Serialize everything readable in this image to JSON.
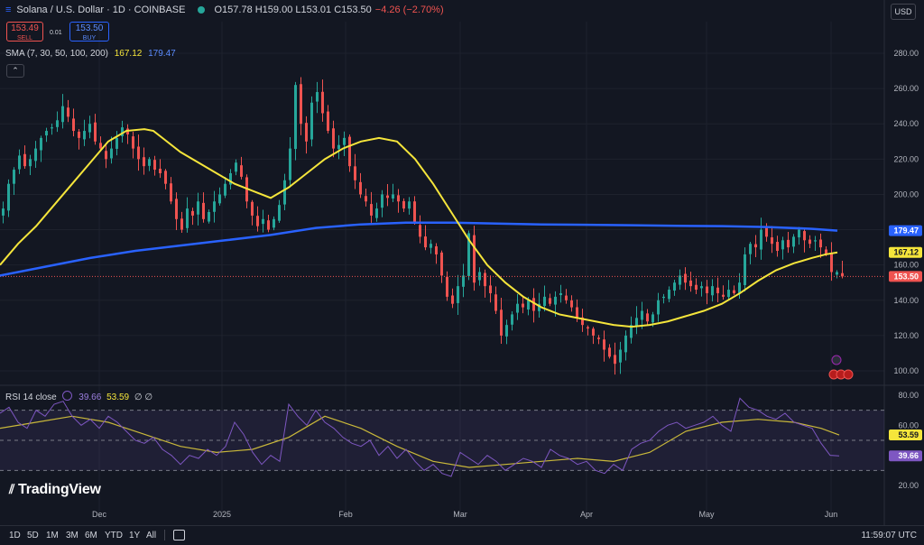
{
  "header": {
    "title": "Solana / U.S. Dollar · 1D · COINBASE",
    "ohlc": "O157.78 H159.00 L153.01 C153.50",
    "change": "−4.26 (−2.70%)"
  },
  "trade": {
    "sell_price": "153.49",
    "sell_label": "SELL",
    "spread": "0.01",
    "buy_price": "153.50",
    "buy_label": "BUY"
  },
  "indicator": {
    "label": "SMA (7, 30, 50, 100, 200)",
    "v1": "167.12",
    "v2": "179.47"
  },
  "currency": "USD",
  "rsi": {
    "label": "RSI 14 close",
    "v1": "39.66",
    "v2": "53.59",
    "extra": "∅ ∅"
  },
  "logo": "TradingView",
  "bottom": {
    "timeframes": [
      "1D",
      "5D",
      "1M",
      "3M",
      "6M",
      "YTD",
      "1Y",
      "All"
    ],
    "clock": "11:59:07 UTC"
  },
  "colors": {
    "up": "#26a69a",
    "down": "#ef5350",
    "sma_yellow": "#f5e53b",
    "sma_blue": "#2962ff",
    "rsi": "#7e57c2",
    "rsi_ma": "#c9b83a",
    "bg": "#131722"
  },
  "chart_data": {
    "type": "candlestick",
    "interval": "1D",
    "x_ticks": [
      "Dec",
      "2025",
      "Feb",
      "Mar",
      "Apr",
      "May",
      "Jun"
    ],
    "y_ticks": [
      100,
      120,
      140,
      160,
      180,
      200,
      220,
      240,
      260,
      280
    ],
    "ylim": [
      95,
      290
    ],
    "price_labels": {
      "sma_blue": "179.47",
      "sma_yellow": "167.12",
      "last": "153.50"
    },
    "close_series": [
      [
        0,
        192
      ],
      [
        6,
        206
      ],
      [
        12,
        214
      ],
      [
        18,
        222
      ],
      [
        24,
        216
      ],
      [
        30,
        220
      ],
      [
        36,
        226
      ],
      [
        42,
        232
      ],
      [
        48,
        236
      ],
      [
        54,
        238
      ],
      [
        60,
        242
      ],
      [
        66,
        250
      ],
      [
        72,
        244
      ],
      [
        78,
        236
      ],
      [
        84,
        232
      ],
      [
        90,
        236
      ],
      [
        96,
        240
      ],
      [
        102,
        230
      ],
      [
        108,
        226
      ],
      [
        114,
        220
      ],
      [
        120,
        226
      ],
      [
        126,
        232
      ],
      [
        132,
        238
      ],
      [
        138,
        234
      ],
      [
        144,
        226
      ],
      [
        150,
        220
      ],
      [
        156,
        216
      ],
      [
        162,
        220
      ],
      [
        168,
        214
      ],
      [
        174,
        212
      ],
      [
        180,
        206
      ],
      [
        186,
        196
      ],
      [
        192,
        186
      ],
      [
        198,
        180
      ],
      [
        204,
        192
      ],
      [
        210,
        188
      ],
      [
        216,
        196
      ],
      [
        222,
        186
      ],
      [
        228,
        190
      ],
      [
        234,
        196
      ],
      [
        240,
        200
      ],
      [
        246,
        206
      ],
      [
        252,
        212
      ],
      [
        258,
        218
      ],
      [
        264,
        210
      ],
      [
        270,
        196
      ],
      [
        276,
        188
      ],
      [
        282,
        182
      ],
      [
        288,
        186
      ],
      [
        294,
        180
      ],
      [
        300,
        186
      ],
      [
        306,
        194
      ],
      [
        312,
        208
      ],
      [
        318,
        226
      ],
      [
        324,
        262
      ],
      [
        330,
        240
      ],
      [
        336,
        230
      ],
      [
        342,
        252
      ],
      [
        348,
        258
      ],
      [
        354,
        246
      ],
      [
        360,
        236
      ],
      [
        366,
        226
      ],
      [
        372,
        228
      ],
      [
        378,
        232
      ],
      [
        384,
        216
      ],
      [
        390,
        208
      ],
      [
        396,
        200
      ],
      [
        402,
        196
      ],
      [
        408,
        188
      ],
      [
        414,
        192
      ],
      [
        420,
        200
      ],
      [
        426,
        198
      ],
      [
        432,
        200
      ],
      [
        438,
        196
      ],
      [
        444,
        192
      ],
      [
        450,
        196
      ],
      [
        456,
        184
      ],
      [
        462,
        176
      ],
      [
        468,
        170
      ],
      [
        474,
        172
      ],
      [
        480,
        166
      ],
      [
        486,
        154
      ],
      [
        492,
        142
      ],
      [
        498,
        138
      ],
      [
        504,
        148
      ],
      [
        510,
        154
      ],
      [
        516,
        178
      ],
      [
        522,
        150
      ],
      [
        528,
        156
      ],
      [
        534,
        148
      ],
      [
        540,
        144
      ],
      [
        546,
        134
      ],
      [
        552,
        120
      ],
      [
        558,
        126
      ],
      [
        564,
        132
      ],
      [
        570,
        138
      ],
      [
        576,
        136
      ],
      [
        582,
        140
      ],
      [
        588,
        134
      ],
      [
        594,
        138
      ],
      [
        600,
        142
      ],
      [
        606,
        138
      ],
      [
        612,
        142
      ],
      [
        618,
        144
      ],
      [
        624,
        140
      ],
      [
        630,
        136
      ],
      [
        636,
        130
      ],
      [
        642,
        126
      ],
      [
        648,
        124
      ],
      [
        654,
        120
      ],
      [
        660,
        118
      ],
      [
        666,
        112
      ],
      [
        672,
        108
      ],
      [
        678,
        104
      ],
      [
        684,
        112
      ],
      [
        690,
        120
      ],
      [
        696,
        126
      ],
      [
        702,
        130
      ],
      [
        708,
        134
      ],
      [
        714,
        128
      ],
      [
        720,
        132
      ],
      [
        726,
        140
      ],
      [
        732,
        142
      ],
      [
        738,
        146
      ],
      [
        744,
        150
      ],
      [
        750,
        154
      ],
      [
        756,
        150
      ],
      [
        762,
        148
      ],
      [
        768,
        146
      ],
      [
        774,
        148
      ],
      [
        780,
        144
      ],
      [
        786,
        148
      ],
      [
        792,
        144
      ],
      [
        798,
        142
      ],
      [
        804,
        146
      ],
      [
        810,
        144
      ],
      [
        816,
        150
      ],
      [
        822,
        166
      ],
      [
        828,
        172
      ],
      [
        834,
        170
      ],
      [
        840,
        180
      ],
      [
        846,
        176
      ],
      [
        852,
        172
      ],
      [
        858,
        168
      ],
      [
        864,
        174
      ],
      [
        870,
        170
      ],
      [
        876,
        176
      ],
      [
        882,
        180
      ],
      [
        888,
        174
      ],
      [
        894,
        172
      ],
      [
        900,
        174
      ],
      [
        906,
        170
      ],
      [
        912,
        166
      ],
      [
        918,
        156
      ],
      [
        924,
        156
      ],
      [
        930,
        153.5
      ]
    ],
    "sma_yellow": [
      [
        0,
        160
      ],
      [
        20,
        172
      ],
      [
        40,
        182
      ],
      [
        60,
        194
      ],
      [
        80,
        206
      ],
      [
        100,
        218
      ],
      [
        120,
        230
      ],
      [
        140,
        236
      ],
      [
        160,
        237
      ],
      [
        170,
        236
      ],
      [
        180,
        232
      ],
      [
        200,
        224
      ],
      [
        220,
        218
      ],
      [
        240,
        212
      ],
      [
        260,
        206
      ],
      [
        280,
        202
      ],
      [
        300,
        198
      ],
      [
        320,
        204
      ],
      [
        340,
        212
      ],
      [
        360,
        220
      ],
      [
        380,
        226
      ],
      [
        400,
        230
      ],
      [
        420,
        232
      ],
      [
        440,
        230
      ],
      [
        460,
        220
      ],
      [
        480,
        206
      ],
      [
        500,
        190
      ],
      [
        520,
        174
      ],
      [
        540,
        160
      ],
      [
        560,
        150
      ],
      [
        580,
        142
      ],
      [
        600,
        136
      ],
      [
        620,
        132
      ],
      [
        640,
        130
      ],
      [
        660,
        128
      ],
      [
        680,
        126
      ],
      [
        700,
        125
      ],
      [
        720,
        126
      ],
      [
        740,
        128
      ],
      [
        760,
        131
      ],
      [
        780,
        134
      ],
      [
        800,
        138
      ],
      [
        820,
        144
      ],
      [
        840,
        151
      ],
      [
        860,
        157
      ],
      [
        880,
        161
      ],
      [
        900,
        164
      ],
      [
        915,
        166
      ],
      [
        928,
        167.12
      ]
    ],
    "sma_blue": [
      [
        0,
        154
      ],
      [
        50,
        159
      ],
      [
        100,
        164
      ],
      [
        150,
        168
      ],
      [
        200,
        171
      ],
      [
        250,
        174
      ],
      [
        300,
        177
      ],
      [
        350,
        181
      ],
      [
        400,
        183
      ],
      [
        450,
        184
      ],
      [
        500,
        184
      ],
      [
        550,
        183.5
      ],
      [
        600,
        183
      ],
      [
        650,
        182.8
      ],
      [
        700,
        182.5
      ],
      [
        750,
        182.2
      ],
      [
        800,
        182
      ],
      [
        850,
        181.5
      ],
      [
        900,
        180.5
      ],
      [
        928,
        179.47
      ]
    ],
    "rsi": {
      "levels": [
        30,
        50,
        70
      ],
      "y_ticks": [
        20,
        40,
        60,
        80
      ],
      "last": 39.66,
      "ma_last": 53.59,
      "series": [
        [
          0,
          68
        ],
        [
          10,
          72
        ],
        [
          20,
          62
        ],
        [
          30,
          58
        ],
        [
          40,
          70
        ],
        [
          50,
          66
        ],
        [
          60,
          74
        ],
        [
          70,
          76
        ],
        [
          80,
          66
        ],
        [
          90,
          60
        ],
        [
          100,
          64
        ],
        [
          110,
          58
        ],
        [
          120,
          66
        ],
        [
          130,
          62
        ],
        [
          140,
          56
        ],
        [
          150,
          50
        ],
        [
          160,
          48
        ],
        [
          170,
          52
        ],
        [
          180,
          44
        ],
        [
          190,
          40
        ],
        [
          200,
          34
        ],
        [
          210,
          40
        ],
        [
          220,
          38
        ],
        [
          230,
          44
        ],
        [
          240,
          40
        ],
        [
          250,
          46
        ],
        [
          260,
          62
        ],
        [
          270,
          54
        ],
        [
          280,
          42
        ],
        [
          290,
          34
        ],
        [
          300,
          40
        ],
        [
          310,
          36
        ],
        [
          320,
          74
        ],
        [
          330,
          66
        ],
        [
          340,
          60
        ],
        [
          350,
          70
        ],
        [
          360,
          62
        ],
        [
          370,
          58
        ],
        [
          380,
          52
        ],
        [
          390,
          48
        ],
        [
          400,
          46
        ],
        [
          410,
          50
        ],
        [
          420,
          40
        ],
        [
          430,
          46
        ],
        [
          440,
          38
        ],
        [
          450,
          44
        ],
        [
          460,
          36
        ],
        [
          470,
          30
        ],
        [
          480,
          34
        ],
        [
          490,
          28
        ],
        [
          500,
          26
        ],
        [
          510,
          42
        ],
        [
          520,
          38
        ],
        [
          530,
          34
        ],
        [
          540,
          40
        ],
        [
          550,
          36
        ],
        [
          560,
          30
        ],
        [
          570,
          34
        ],
        [
          580,
          38
        ],
        [
          590,
          36
        ],
        [
          600,
          32
        ],
        [
          610,
          44
        ],
        [
          620,
          40
        ],
        [
          630,
          38
        ],
        [
          640,
          34
        ],
        [
          650,
          36
        ],
        [
          660,
          30
        ],
        [
          670,
          28
        ],
        [
          680,
          34
        ],
        [
          690,
          30
        ],
        [
          700,
          44
        ],
        [
          710,
          48
        ],
        [
          720,
          50
        ],
        [
          730,
          56
        ],
        [
          740,
          60
        ],
        [
          750,
          62
        ],
        [
          760,
          58
        ],
        [
          770,
          60
        ],
        [
          780,
          62
        ],
        [
          790,
          66
        ],
        [
          800,
          60
        ],
        [
          810,
          56
        ],
        [
          820,
          78
        ],
        [
          830,
          72
        ],
        [
          840,
          70
        ],
        [
          850,
          66
        ],
        [
          860,
          64
        ],
        [
          870,
          68
        ],
        [
          880,
          62
        ],
        [
          890,
          60
        ],
        [
          900,
          58
        ],
        [
          910,
          48
        ],
        [
          920,
          40
        ],
        [
          930,
          39.66
        ]
      ],
      "ma": [
        [
          0,
          58
        ],
        [
          40,
          62
        ],
        [
          80,
          66
        ],
        [
          120,
          62
        ],
        [
          160,
          54
        ],
        [
          200,
          46
        ],
        [
          240,
          42
        ],
        [
          280,
          44
        ],
        [
          320,
          52
        ],
        [
          360,
          66
        ],
        [
          400,
          58
        ],
        [
          440,
          46
        ],
        [
          480,
          36
        ],
        [
          520,
          32
        ],
        [
          560,
          34
        ],
        [
          600,
          36
        ],
        [
          640,
          38
        ],
        [
          680,
          36
        ],
        [
          720,
          42
        ],
        [
          760,
          56
        ],
        [
          800,
          62
        ],
        [
          840,
          64
        ],
        [
          880,
          62
        ],
        [
          910,
          58
        ],
        [
          930,
          53.59
        ]
      ]
    }
  }
}
